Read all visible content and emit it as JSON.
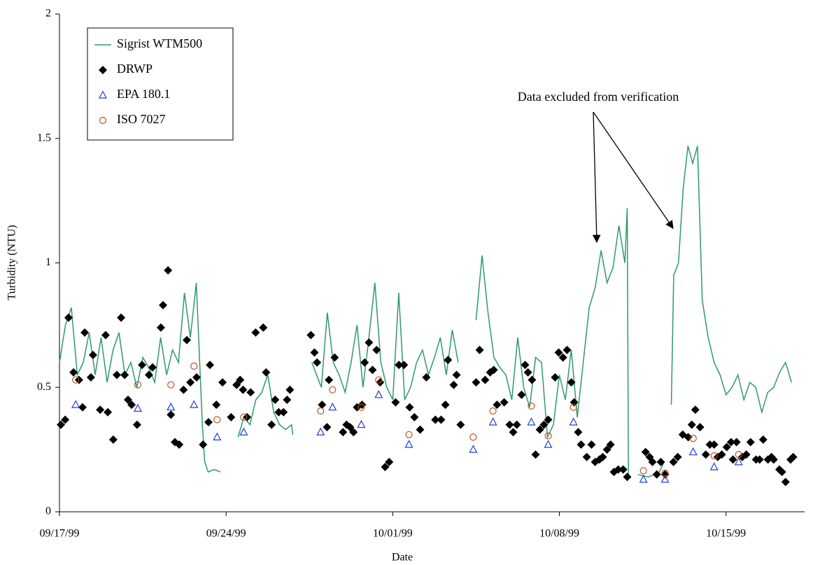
{
  "chart_data": {
    "type": "line",
    "xlabel": "Date",
    "ylabel": "Turbidity (NTU)",
    "xlim": [
      0,
      31.3
    ],
    "ylim": [
      0,
      2
    ],
    "xticks": [
      {
        "value": 0,
        "label": "09/17/99"
      },
      {
        "value": 7,
        "label": "09/24/99"
      },
      {
        "value": 14,
        "label": "10/01/99"
      },
      {
        "value": 21,
        "label": "10/08/99"
      },
      {
        "value": 28,
        "label": "10/15/99"
      }
    ],
    "yticks": [
      0,
      0.5,
      1,
      1.5,
      2
    ],
    "grid": false,
    "legend": "upper left",
    "annotations": [
      {
        "text": "Data excluded from verification"
      }
    ],
    "series": [
      {
        "name": "Sigrist WTM500",
        "type": "line",
        "color": "#2e9a6a",
        "x": [
          0,
          0.25,
          0.5,
          0.75,
          1,
          1.25,
          1.5,
          1.75,
          2,
          2.25,
          2.5,
          2.75,
          3,
          3.25,
          3.5,
          3.75,
          4,
          4.25,
          4.5,
          4.75,
          5,
          5.25,
          5.5,
          5.75,
          6,
          6.1,
          6.25,
          6.5,
          6.75,
          7.1,
          7.5,
          7.75,
          8,
          8.25,
          8.5,
          8.75,
          9,
          9.25,
          9.5,
          9.75,
          9.8,
          10.2,
          10.6,
          11,
          11.25,
          11.5,
          11.75,
          12,
          12.25,
          12.5,
          12.75,
          13,
          13.25,
          13.5,
          13.75,
          14,
          14.25,
          14.5,
          14.75,
          15,
          15.25,
          15.5,
          15.75,
          16,
          16.25,
          16.5,
          16.75,
          17.1,
          17.5,
          17.75,
          18,
          18.25,
          18.5,
          18.75,
          19,
          19.25,
          19.5,
          19.75,
          20,
          20.25,
          20.5,
          20.75,
          21,
          21.25,
          21.5,
          21.75,
          22,
          22.25,
          22.5,
          22.75,
          23,
          23.25,
          23.5,
          23.75,
          23.85,
          23.9,
          24.1,
          24.3,
          24.75,
          25.2,
          25.4,
          25.55,
          25.7,
          25.8,
          26,
          26.2,
          26.4,
          26.6,
          26.8,
          27,
          27.25,
          27.5,
          27.75,
          28,
          28.25,
          28.5,
          28.75,
          29,
          29.25,
          29.5,
          29.75,
          30,
          30.25,
          30.5,
          30.75
        ],
        "values": [
          0.6,
          0.75,
          0.82,
          0.55,
          0.6,
          0.72,
          0.55,
          0.7,
          0.52,
          0.65,
          0.72,
          0.55,
          0.6,
          0.5,
          0.62,
          0.58,
          0.52,
          0.7,
          0.55,
          0.65,
          0.6,
          0.88,
          0.7,
          0.92,
          0.35,
          0.2,
          0.16,
          0.17,
          0.16,
          null,
          0.3,
          0.38,
          0.35,
          0.45,
          0.48,
          0.55,
          0.4,
          0.35,
          0.33,
          0.35,
          0.31,
          null,
          0.6,
          0.5,
          0.8,
          0.6,
          0.55,
          0.48,
          0.6,
          0.75,
          0.5,
          0.7,
          0.92,
          0.6,
          0.5,
          0.45,
          0.88,
          0.45,
          0.5,
          0.6,
          0.65,
          0.55,
          0.62,
          0.7,
          0.55,
          0.73,
          0.6,
          null,
          0.77,
          1.03,
          0.8,
          0.62,
          0.58,
          0.55,
          0.45,
          0.7,
          0.5,
          0.42,
          0.62,
          0.6,
          0.3,
          0.35,
          0.55,
          0.45,
          0.65,
          0.38,
          0.6,
          0.82,
          0.9,
          1.05,
          0.92,
          0.98,
          1.15,
          1.0,
          1.22,
          0.15,
          null,
          0.15,
          0.14,
          0.16,
          0.2,
          null,
          0.43,
          0.95,
          1.0,
          1.3,
          1.47,
          1.4,
          1.47,
          0.85,
          0.7,
          0.6,
          0.55,
          0.47,
          0.5,
          0.55,
          0.45,
          0.52,
          0.5,
          0.4,
          0.48,
          0.5,
          0.56,
          0.6,
          0.52
        ]
      },
      {
        "name": "DRWP",
        "type": "scatter",
        "marker": "diamond",
        "color": "#000000",
        "x": [
          0.06,
          0.24,
          0.38,
          0.59,
          0.82,
          0.97,
          1.06,
          1.32,
          1.41,
          1.71,
          1.94,
          2.03,
          2.26,
          2.41,
          2.59,
          2.74,
          2.88,
          3.03,
          3.26,
          3.47,
          3.76,
          3.91,
          4.26,
          4.35,
          4.56,
          4.68,
          4.85,
          5.03,
          5.21,
          5.35,
          5.5,
          5.76,
          6.03,
          6.26,
          6.32,
          6.59,
          6.85,
          7.21,
          7.44,
          7.59,
          7.71,
          7.88,
          8.03,
          8.24,
          8.56,
          8.68,
          8.91,
          9.06,
          9.21,
          9.41,
          9.56,
          9.68,
          10.56,
          10.71,
          10.82,
          11.03,
          11.24,
          11.32,
          11.56,
          11.91,
          12.06,
          12.21,
          12.35,
          12.5,
          12.71,
          12.82,
          13,
          13.15,
          13.32,
          13.47,
          13.68,
          13.85,
          14.12,
          14.26,
          14.47,
          14.71,
          14.91,
          15.15,
          15.41,
          15.79,
          16.03,
          16.21,
          16.32,
          16.56,
          16.68,
          16.85,
          17.5,
          17.65,
          17.88,
          18.09,
          18.24,
          18.38,
          18.68,
          18.91,
          19.06,
          19.21,
          19.41,
          19.56,
          19.68,
          19.85,
          20,
          20.18,
          20.35,
          20.53,
          20.82,
          20.97,
          21.15,
          21.32,
          21.5,
          21.62,
          21.79,
          21.91,
          22.15,
          22.35,
          22.5,
          22.68,
          22.82,
          23,
          23.15,
          23.29,
          23.47,
          23.68,
          23.85,
          24.62,
          24.79,
          24.91,
          25.09,
          25.26,
          25.44,
          25.79,
          25.97,
          26.18,
          26.41,
          26.56,
          26.71,
          26.91,
          27.15,
          27.32,
          27.5,
          27.65,
          27.82,
          28.03,
          28.21,
          28.29,
          28.44,
          28.68,
          28.85,
          29.03,
          29.26,
          29.41,
          29.56,
          29.76,
          29.91,
          30,
          30.24,
          30.35,
          30.5,
          30.71,
          30.82
        ],
        "values": [
          0.35,
          0.37,
          0.78,
          0.56,
          0.53,
          0.42,
          0.72,
          0.54,
          0.63,
          0.41,
          0.71,
          0.4,
          0.29,
          0.55,
          0.78,
          0.55,
          0.45,
          0.43,
          0.35,
          0.59,
          0.55,
          0.58,
          0.74,
          0.83,
          0.97,
          0.39,
          0.28,
          0.27,
          0.49,
          0.69,
          0.52,
          0.54,
          0.27,
          0.36,
          0.59,
          0.43,
          0.52,
          0.38,
          0.51,
          0.53,
          0.49,
          0.38,
          0.48,
          0.72,
          0.74,
          0.56,
          0.35,
          0.45,
          0.4,
          0.4,
          0.45,
          0.49,
          0.71,
          0.64,
          0.6,
          0.43,
          0.34,
          0.53,
          0.62,
          0.32,
          0.35,
          0.34,
          0.32,
          0.42,
          0.43,
          0.6,
          0.68,
          0.57,
          0.65,
          0.52,
          0.18,
          0.2,
          0.44,
          0.59,
          0.59,
          0.42,
          0.38,
          0.33,
          0.54,
          0.37,
          0.37,
          0.43,
          0.61,
          0.51,
          0.55,
          0.35,
          0.52,
          0.65,
          0.53,
          0.56,
          0.57,
          0.43,
          0.44,
          0.35,
          0.32,
          0.35,
          0.47,
          0.59,
          0.56,
          0.53,
          0.23,
          0.33,
          0.35,
          0.37,
          0.54,
          0.64,
          0.62,
          0.65,
          0.52,
          0.44,
          0.32,
          0.27,
          0.22,
          0.27,
          0.2,
          0.21,
          0.22,
          0.25,
          0.27,
          0.16,
          0.17,
          0.17,
          0.14,
          0.24,
          0.22,
          0.2,
          0.15,
          0.2,
          0.15,
          0.2,
          0.22,
          0.31,
          0.3,
          0.35,
          0.41,
          0.34,
          0.23,
          0.27,
          0.27,
          0.22,
          0.23,
          0.26,
          0.28,
          0.21,
          0.28,
          0.22,
          0.23,
          0.28,
          0.21,
          0.21,
          0.29,
          0.21,
          0.22,
          0.21,
          0.17,
          0.16,
          0.12,
          0.21,
          0.22
        ]
      },
      {
        "name": "EPA 180.1",
        "type": "scatter",
        "marker": "triangle",
        "color": "#1f3fd6",
        "x": [
          0.68,
          3.29,
          4.68,
          5.65,
          6.62,
          7.74,
          10.97,
          11.47,
          12.68,
          13.41,
          14.68,
          17.38,
          18.21,
          19.82,
          20.53,
          21.59,
          24.53,
          25.44,
          26.62,
          27.5,
          28.53
        ],
        "values": [
          0.43,
          0.415,
          0.42,
          0.43,
          0.3,
          0.32,
          0.32,
          0.42,
          0.35,
          0.47,
          0.27,
          0.25,
          0.36,
          0.36,
          0.27,
          0.36,
          0.13,
          0.13,
          0.24,
          0.18,
          0.2
        ]
      },
      {
        "name": "ISO 7027",
        "type": "scatter",
        "marker": "circle",
        "color": "#b5531f",
        "x": [
          0.68,
          3.29,
          4.68,
          5.65,
          6.62,
          7.74,
          10.97,
          11.47,
          12.68,
          13.41,
          14.68,
          17.38,
          18.21,
          19.82,
          20.53,
          21.59,
          24.53,
          25.44,
          26.62,
          27.5,
          28.53
        ],
        "values": [
          0.53,
          0.51,
          0.51,
          0.585,
          0.37,
          0.38,
          0.405,
          0.49,
          0.42,
          0.53,
          0.31,
          0.3,
          0.405,
          0.425,
          0.305,
          0.42,
          0.165,
          0.155,
          0.295,
          0.225,
          0.23
        ]
      }
    ]
  }
}
